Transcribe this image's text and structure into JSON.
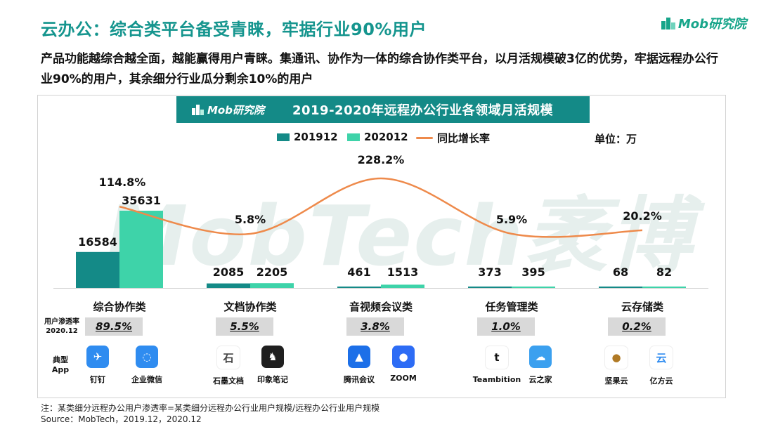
{
  "header": {
    "title": "云办公：综合类平台备受青睐，牢据行业90%用户",
    "subtitle": "产品功能越综合越全面，越能赢得用户青睐。集通讯、协作为一体的综合协作类平台，以月活规模破3亿的优势，牢据远程办公行业90%的用户，其余细分行业瓜分剩余10%的用户",
    "logo_text": "Mob研究院"
  },
  "banner": {
    "logo_text": "Mob研究院",
    "title": "2019-2020年远程办公行业各领域月活规模"
  },
  "watermark": "MobTech袤博",
  "unit": "单位：万",
  "colors": {
    "s2019": "#148a87",
    "s2020": "#3ed3a9",
    "growth": "#ee8a4b",
    "accent": "#15958e"
  },
  "chart_data": {
    "type": "bar",
    "title": "2019-2020年远程办公行业各领域月活规模",
    "unit": "单位：万",
    "categories": [
      "综合协作类",
      "文档协作类",
      "音视频会议类",
      "任务管理类",
      "云存储类"
    ],
    "series": [
      {
        "name": "201912",
        "type": "bar",
        "values": [
          16584,
          2085,
          461,
          373,
          68
        ]
      },
      {
        "name": "202012",
        "type": "bar",
        "values": [
          35631,
          2205,
          1513,
          395,
          82
        ]
      },
      {
        "name": "同比增长率",
        "type": "line",
        "axis": "secondary",
        "values": [
          114.8,
          5.8,
          228.2,
          5.9,
          20.2
        ],
        "labels": [
          "114.8%",
          "5.8%",
          "228.2%",
          "5.9%",
          "20.2%"
        ]
      }
    ],
    "legend": "top"
  },
  "penetration": {
    "label_line1": "用户渗透率",
    "label_line2": "2020.12",
    "values": [
      "89.5%",
      "5.5%",
      "3.8%",
      "1.0%",
      "0.2%"
    ]
  },
  "apps": {
    "label_line1": "典型",
    "label_line2": "App",
    "items": [
      {
        "name": "钉钉",
        "icon": "dingtalk-icon",
        "color": "#2f8cf0"
      },
      {
        "name": "企业微信",
        "icon": "wecom-icon",
        "color": "#2f8cf0"
      },
      {
        "name": "石墨文档",
        "icon": "shimo-icon",
        "color": "#ffffff"
      },
      {
        "name": "印象笔记",
        "icon": "evernote-icon",
        "color": "#1f1f1f"
      },
      {
        "name": "腾讯会议",
        "icon": "tencent-meeting-icon",
        "color": "#1c6fe8"
      },
      {
        "name": "ZOOM",
        "icon": "zoom-icon",
        "color": "#2d6cf5"
      },
      {
        "name": "Teambition",
        "icon": "teambition-icon",
        "color": "#ffffff"
      },
      {
        "name": "云之家",
        "icon": "yunzhijia-icon",
        "color": "#3ba0ef"
      },
      {
        "name": "坚果云",
        "icon": "jianguoyun-icon",
        "color": "#ffffff"
      },
      {
        "name": "亿方云",
        "icon": "fangcloud-icon",
        "color": "#ffffff"
      }
    ]
  },
  "footnote": {
    "note": "注：某类细分远程办公用户渗透率=某类细分远程办公行业用户规模/远程办公行业用户规模",
    "source": "Source：MobTech，2019.12，2020.12"
  }
}
